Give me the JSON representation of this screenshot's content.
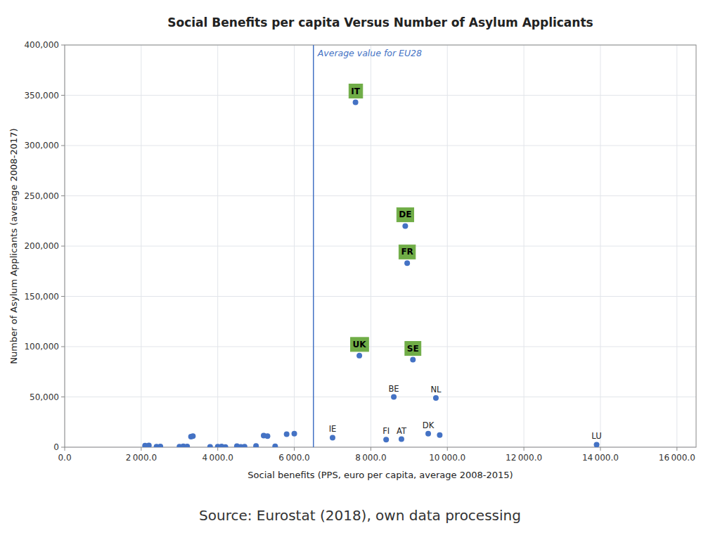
{
  "chart_data": {
    "type": "scatter",
    "title": "Social Benefits per capita Versus Number of Asylum Applicants",
    "x_label": "Social benefits (PPS, euro per capita, average 2008-2015)",
    "y_label": "Number of Asylum Applicants (average 2008-2017)",
    "source": "Source: Eurostat (2018), own data processing",
    "color": "#4472C4",
    "grid": true,
    "xlim": [
      0,
      16500
    ],
    "ylim": [
      0,
      400000
    ],
    "xticks": [
      {
        "value": 0,
        "label": "0.0"
      },
      {
        "value": 2000,
        "label": "2 000.0"
      },
      {
        "value": 4000,
        "label": "4 000.0"
      },
      {
        "value": 6000,
        "label": "6 000.0"
      },
      {
        "value": 8000,
        "label": "8 000.0"
      },
      {
        "value": 10000,
        "label": "10 000.0"
      },
      {
        "value": 12000,
        "label": "12 000.0"
      },
      {
        "value": 14000,
        "label": "14 000.0"
      },
      {
        "value": 16000,
        "label": "16 000.0"
      }
    ],
    "yticks": [
      0,
      {
        "value": 50000,
        "label": "50,000"
      },
      {
        "value": 100000,
        "label": "100,000"
      },
      {
        "value": 150000,
        "label": "150,000"
      },
      {
        "value": 200000,
        "label": "200,000"
      },
      {
        "value": 250000,
        "label": "250,000"
      },
      {
        "value": 300000,
        "label": "300,000"
      },
      {
        "value": 350000,
        "label": "350,000"
      },
      {
        "value": 400000,
        "label": "400,000"
      }
    ],
    "x": [
      2100,
      2200,
      2400,
      2500,
      3000,
      3100,
      3200,
      3300,
      3350,
      3800,
      4000,
      4100,
      4200,
      4500,
      4600,
      4700,
      5000,
      5200,
      5300,
      5500,
      5800,
      6000,
      7000,
      7600,
      7700,
      8400,
      8600,
      8800,
      8900,
      8950,
      9100,
      9500,
      9700,
      9800,
      13900
    ],
    "values": [
      1500,
      1800,
      500,
      700,
      500,
      900,
      700,
      10500,
      11000,
      300,
      500,
      700,
      200,
      1000,
      400,
      500,
      1200,
      11500,
      11000,
      900,
      13000,
      13500,
      9500,
      343000,
      91000,
      7500,
      50000,
      8000,
      220000,
      183000,
      87000,
      13500,
      49000,
      12000,
      2500
    ],
    "reference_lines": [
      {
        "x": 6500,
        "label": "Average value for EU28",
        "color": "#4472C4"
      }
    ],
    "annotations": [
      {
        "text": "IE",
        "x": 7000,
        "y": 9500
      },
      {
        "text": "IT",
        "x": 7600,
        "y": 343000,
        "color": "#70AD47"
      },
      {
        "text": "UK",
        "x": 7700,
        "y": 91000,
        "color": "#70AD47"
      },
      {
        "text": "FI",
        "x": 8400,
        "y": 7500
      },
      {
        "text": "BE",
        "x": 8600,
        "y": 50000
      },
      {
        "text": "AT",
        "x": 8800,
        "y": 8000
      },
      {
        "text": "DE",
        "x": 8900,
        "y": 220000,
        "color": "#70AD47"
      },
      {
        "text": "FR",
        "x": 8950,
        "y": 183000,
        "color": "#70AD47"
      },
      {
        "text": "SE",
        "x": 9100,
        "y": 87000,
        "color": "#70AD47"
      },
      {
        "text": "DK",
        "x": 9500,
        "y": 13500
      },
      {
        "text": "NL",
        "x": 9700,
        "y": 49000
      },
      {
        "text": "LU",
        "x": 13900,
        "y": 2500
      }
    ]
  }
}
